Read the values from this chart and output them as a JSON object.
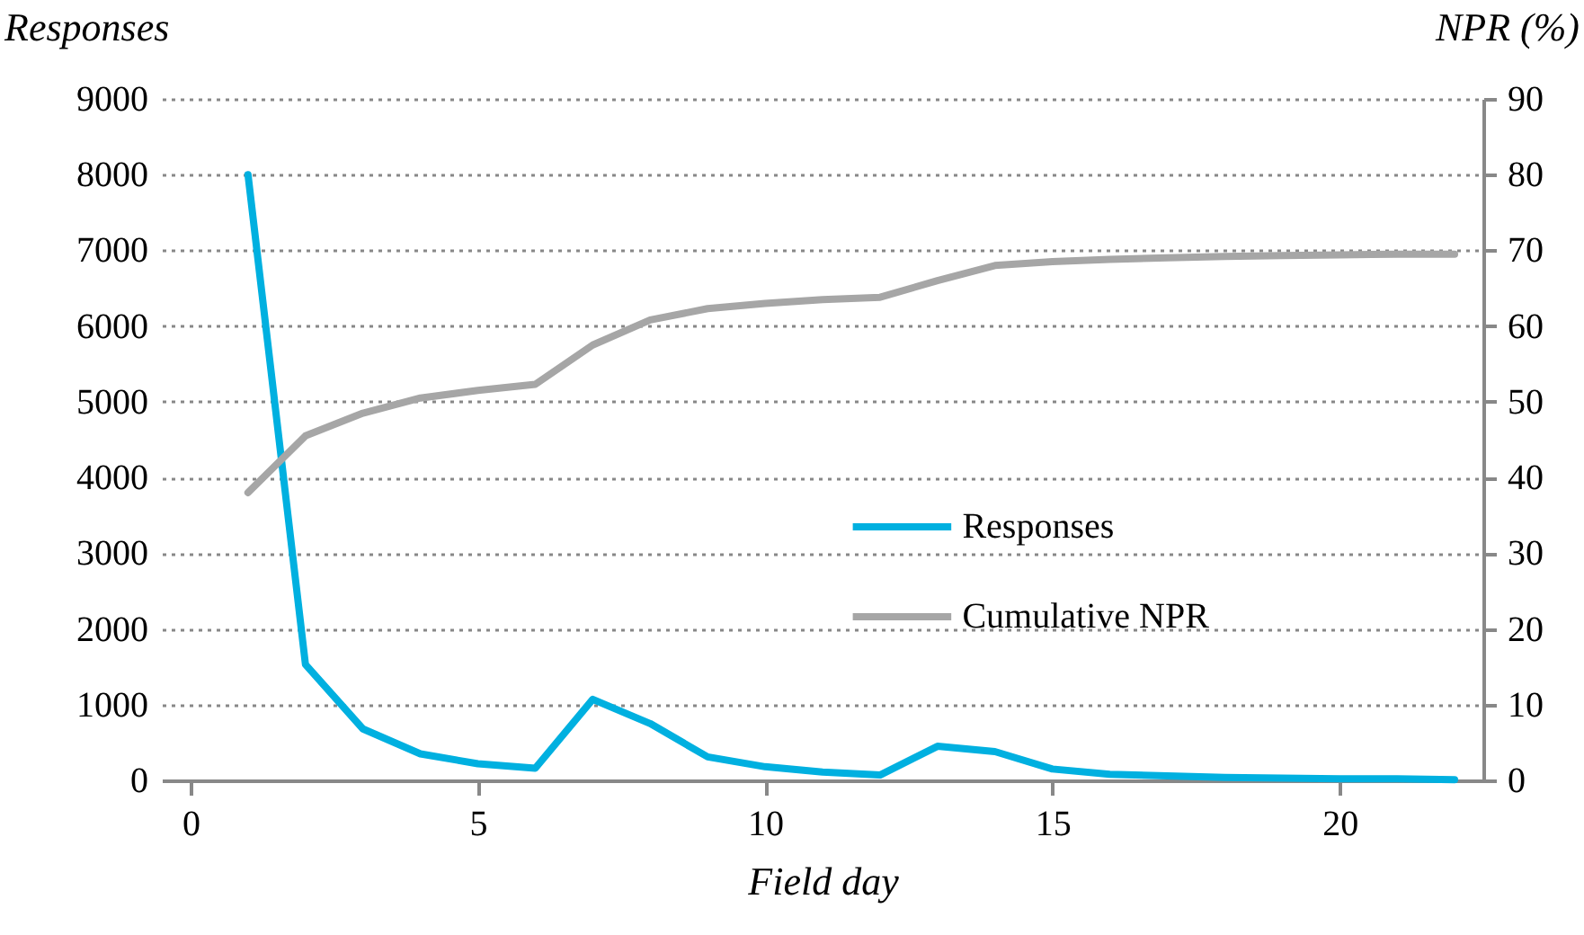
{
  "chart_data": {
    "type": "line",
    "xlabel": "Field day",
    "ylabel": "Responses",
    "y2label": "NPR (%)",
    "x": [
      1,
      2,
      3,
      4,
      5,
      6,
      7,
      8,
      9,
      10,
      11,
      12,
      13,
      14,
      15,
      16,
      17,
      18,
      19,
      20,
      21,
      22
    ],
    "series": [
      {
        "name": "Responses",
        "color": "#00b0e0",
        "values": [
          8000,
          1530,
          680,
          350,
          220,
          160,
          1070,
          750,
          310,
          180,
          110,
          70,
          450,
          380,
          150,
          80,
          60,
          40,
          30,
          20,
          20,
          10
        ]
      },
      {
        "name": "Cumulative NPR",
        "color": "#a6a6a6",
        "axis": "y2",
        "values": [
          38,
          45.5,
          48.5,
          50.5,
          51.5,
          52.3,
          57.5,
          60.8,
          62.3,
          63,
          63.5,
          63.8,
          66,
          68,
          68.5,
          68.8,
          69,
          69.2,
          69.3,
          69.4,
          69.5,
          69.5
        ]
      }
    ],
    "xlim": [
      -0.5,
      22.5
    ],
    "xticks": [
      0,
      5,
      10,
      15,
      20
    ],
    "ylim": [
      0,
      9000
    ],
    "yticks": [
      0,
      1000,
      2000,
      3000,
      4000,
      5000,
      6000,
      7000,
      8000,
      9000
    ],
    "y2lim": [
      0,
      90
    ],
    "y2ticks": [
      0,
      10,
      20,
      30,
      40,
      50,
      60,
      70,
      80,
      90
    ],
    "grid": "y",
    "legend": "right",
    "line_style": "solid",
    "marker": "none"
  }
}
